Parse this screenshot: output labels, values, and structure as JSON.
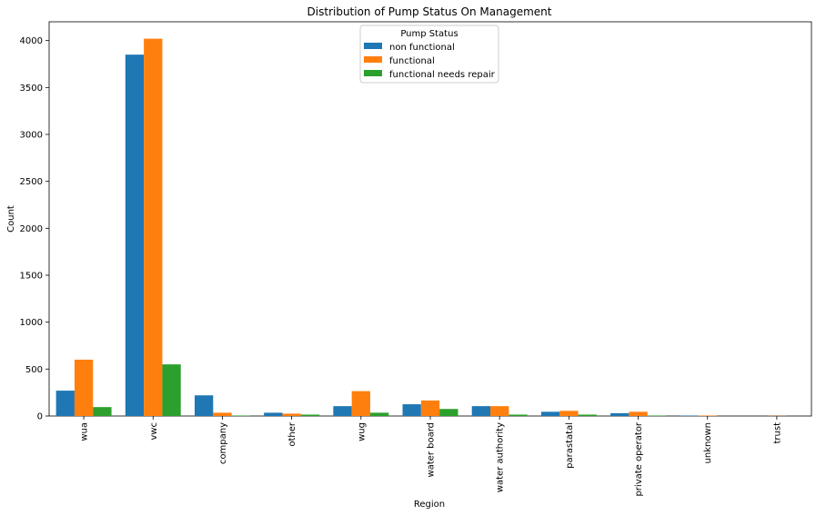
{
  "chart_data": {
    "type": "bar",
    "title": "Distribution of Pump Status On Management",
    "xlabel": "Region",
    "ylabel": "Count",
    "ylim": [
      0,
      4200
    ],
    "yticks": [
      0,
      500,
      1000,
      1500,
      2000,
      2500,
      3000,
      3500,
      4000
    ],
    "categories": [
      "wua",
      "vwc",
      "company",
      "other",
      "wug",
      "water board",
      "water authority",
      "parastatal",
      "private operator",
      "unknown",
      "trust"
    ],
    "legend_title": "Pump Status",
    "legend_position": "top-center",
    "grid": false,
    "series": [
      {
        "name": "non functional",
        "color": "#1f77b4",
        "values": [
          270,
          3850,
          220,
          35,
          105,
          125,
          105,
          45,
          30,
          5,
          0
        ]
      },
      {
        "name": "functional",
        "color": "#ff7f0e",
        "values": [
          600,
          4020,
          35,
          25,
          265,
          165,
          105,
          55,
          45,
          5,
          2
        ]
      },
      {
        "name": "functional needs repair",
        "color": "#2ca02c",
        "values": [
          95,
          550,
          5,
          15,
          35,
          75,
          15,
          15,
          5,
          0,
          0
        ]
      }
    ]
  }
}
